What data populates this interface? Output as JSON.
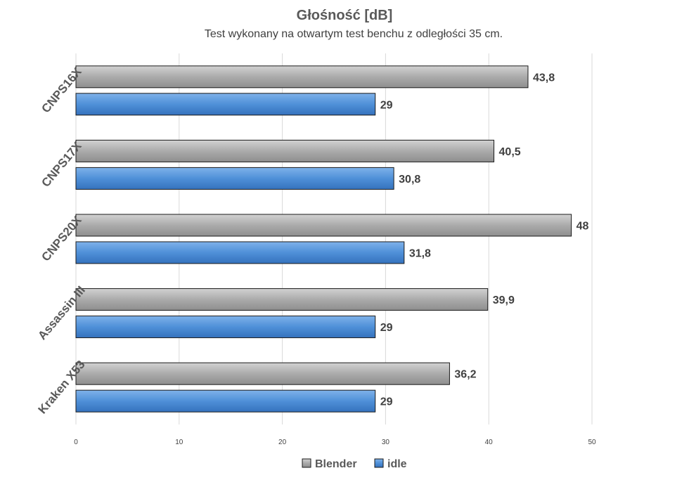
{
  "chart_data": {
    "type": "bar",
    "orientation": "horizontal",
    "title": "Głośność [dB]",
    "subtitle": "Test wykonany na otwartym test benchu z odległości 35 cm.",
    "categories": [
      "CNPS16X",
      "CNPS17X",
      "CNPS20X",
      "Assassin III",
      "Kraken X53"
    ],
    "series": [
      {
        "name": "Blender",
        "color": "#a6a6a6",
        "values": [
          43.8,
          40.5,
          48,
          39.9,
          36.2
        ],
        "labels": [
          "43,8",
          "40,5",
          "48",
          "39,9",
          "36,2"
        ]
      },
      {
        "name": "idle",
        "color": "#4a90d9",
        "values": [
          29,
          30.8,
          31.8,
          29,
          29
        ],
        "labels": [
          "29",
          "30,8",
          "31,8",
          "29",
          "29"
        ]
      }
    ],
    "xlim": [
      0,
      50
    ],
    "xticks": [
      "0",
      "10",
      "20",
      "30",
      "40",
      "50"
    ],
    "grid": true,
    "legend_position": "bottom"
  }
}
